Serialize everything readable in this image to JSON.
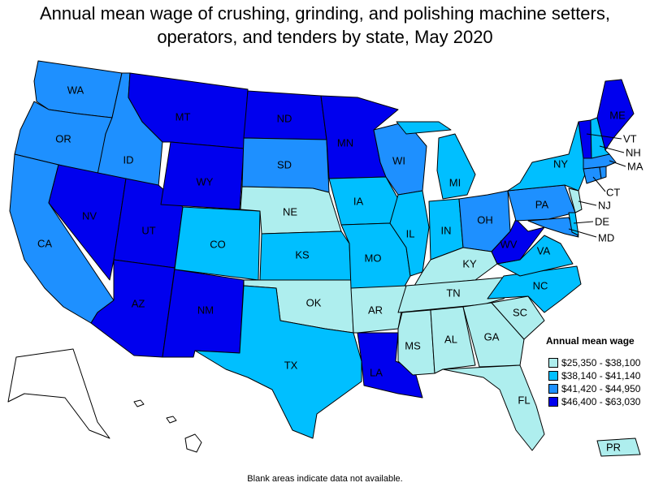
{
  "title": "Annual mean wage of crushing, grinding, and polishing machine setters, operators, and tenders by state, May 2020",
  "legend": {
    "title": "Annual mean wage",
    "bins": [
      {
        "label": "$25,350 - $38,100",
        "color": "#aeeeee"
      },
      {
        "label": "$38,140 - $41,140",
        "color": "#00bfff"
      },
      {
        "label": "$41,420 - $44,950",
        "color": "#1e90ff"
      },
      {
        "label": "$46,400 - $63,030",
        "color": "#0000ee"
      }
    ]
  },
  "footnote": "Blank areas indicate data not available.",
  "states": [
    {
      "abbr": "WA",
      "bin": 2
    },
    {
      "abbr": "OR",
      "bin": 2
    },
    {
      "abbr": "CA",
      "bin": 2
    },
    {
      "abbr": "ID",
      "bin": 2
    },
    {
      "abbr": "NV",
      "bin": 3
    },
    {
      "abbr": "UT",
      "bin": 3
    },
    {
      "abbr": "AZ",
      "bin": 3
    },
    {
      "abbr": "MT",
      "bin": 3
    },
    {
      "abbr": "WY",
      "bin": 3
    },
    {
      "abbr": "CO",
      "bin": 1
    },
    {
      "abbr": "NM",
      "bin": 3
    },
    {
      "abbr": "ND",
      "bin": 3
    },
    {
      "abbr": "SD",
      "bin": 2
    },
    {
      "abbr": "NE",
      "bin": 0
    },
    {
      "abbr": "KS",
      "bin": 1
    },
    {
      "abbr": "OK",
      "bin": 0
    },
    {
      "abbr": "TX",
      "bin": 1
    },
    {
      "abbr": "MN",
      "bin": 3
    },
    {
      "abbr": "IA",
      "bin": 1
    },
    {
      "abbr": "MO",
      "bin": 1
    },
    {
      "abbr": "AR",
      "bin": 0
    },
    {
      "abbr": "LA",
      "bin": 3
    },
    {
      "abbr": "WI",
      "bin": 2
    },
    {
      "abbr": "IL",
      "bin": 1
    },
    {
      "abbr": "MI",
      "bin": 1
    },
    {
      "abbr": "IN",
      "bin": 1
    },
    {
      "abbr": "OH",
      "bin": 2
    },
    {
      "abbr": "KY",
      "bin": 0
    },
    {
      "abbr": "TN",
      "bin": 0
    },
    {
      "abbr": "MS",
      "bin": 0
    },
    {
      "abbr": "AL",
      "bin": 0
    },
    {
      "abbr": "GA",
      "bin": 0
    },
    {
      "abbr": "FL",
      "bin": 0
    },
    {
      "abbr": "SC",
      "bin": 0
    },
    {
      "abbr": "NC",
      "bin": 1
    },
    {
      "abbr": "VA",
      "bin": 1
    },
    {
      "abbr": "WV",
      "bin": 3
    },
    {
      "abbr": "PA",
      "bin": 2
    },
    {
      "abbr": "NY",
      "bin": 1
    },
    {
      "abbr": "ME",
      "bin": 3
    },
    {
      "abbr": "VT",
      "bin": 3
    },
    {
      "abbr": "NH",
      "bin": 1
    },
    {
      "abbr": "MA",
      "bin": 2
    },
    {
      "abbr": "CT",
      "bin": 2
    },
    {
      "abbr": "NJ",
      "bin": 0
    },
    {
      "abbr": "DE",
      "bin": 1
    },
    {
      "abbr": "MD",
      "bin": 2
    },
    {
      "abbr": "PR",
      "bin": 0
    },
    {
      "abbr": "AK",
      "bin": null
    },
    {
      "abbr": "HI",
      "bin": null
    },
    {
      "abbr": "RI",
      "bin": 2
    }
  ]
}
